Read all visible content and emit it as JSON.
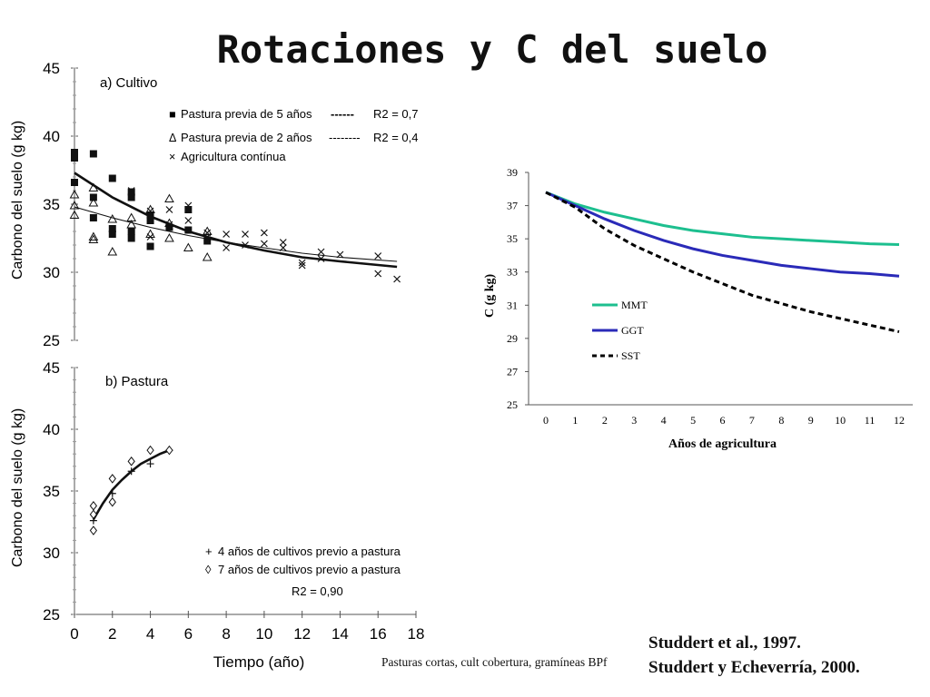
{
  "slide": {
    "title": "Rotaciones y C del suelo",
    "references": [
      "Studdert et al., 1997.",
      "Studdert y Echeverría, 2000."
    ],
    "note": "Pasturas cortas, cult cobertura, gramíneas BPf"
  },
  "chart_data": [
    {
      "type": "scatter",
      "panel_label": "a) Cultivo",
      "ylabel": "Carbono del suelo (g kg-1)",
      "xlabel": "",
      "xlim": [
        0,
        18
      ],
      "ylim": [
        25,
        45
      ],
      "yticks": [
        25,
        30,
        35,
        40,
        45
      ],
      "legend": [
        {
          "marker": "■",
          "label": "Pastura previa de 5 años",
          "line": "------",
          "r2": "R2 = 0,7"
        },
        {
          "marker": "Δ",
          "label": "Pastura previa de 2 años",
          "line": "--------",
          "r2": "R2 = 0,4"
        },
        {
          "marker": "×",
          "label": "Agricultura contínua",
          "line": "",
          "r2": ""
        }
      ],
      "series": [
        {
          "name": "Pastura previa de 5 años",
          "marker": "square",
          "points": [
            [
              0,
              38.8
            ],
            [
              0,
              38.4
            ],
            [
              0,
              36.6
            ],
            [
              1,
              38.7
            ],
            [
              1,
              35.5
            ],
            [
              1,
              34.0
            ],
            [
              2,
              36.9
            ],
            [
              2,
              33.2
            ],
            [
              2,
              32.8
            ],
            [
              3,
              35.9
            ],
            [
              3,
              35.5
            ],
            [
              3,
              33.0
            ],
            [
              3,
              32.5
            ],
            [
              4,
              34.2
            ],
            [
              4,
              33.8
            ],
            [
              4,
              31.9
            ],
            [
              5,
              33.3
            ],
            [
              6,
              34.6
            ],
            [
              6,
              33.1
            ],
            [
              7,
              32.3
            ]
          ]
        },
        {
          "name": "Pastura previa de 2 años",
          "marker": "triangle",
          "points": [
            [
              0,
              35.7
            ],
            [
              0,
              34.9
            ],
            [
              0,
              34.2
            ],
            [
              1,
              36.2
            ],
            [
              1,
              35.1
            ],
            [
              1,
              32.6
            ],
            [
              1,
              32.4
            ],
            [
              2,
              33.9
            ],
            [
              2,
              31.5
            ],
            [
              3,
              34.0
            ],
            [
              3,
              33.5
            ],
            [
              4,
              34.6
            ],
            [
              4,
              32.8
            ],
            [
              5,
              35.4
            ],
            [
              5,
              33.6
            ],
            [
              5,
              32.5
            ],
            [
              6,
              31.8
            ],
            [
              7,
              31.1
            ],
            [
              7,
              33.0
            ]
          ]
        },
        {
          "name": "Agricultura contínua",
          "marker": "cross",
          "points": [
            [
              3,
              36.0
            ],
            [
              4,
              34.5
            ],
            [
              4,
              32.6
            ],
            [
              5,
              34.6
            ],
            [
              5,
              33.5
            ],
            [
              6,
              34.9
            ],
            [
              6,
              34.6
            ],
            [
              6,
              33.8
            ],
            [
              7,
              32.9
            ],
            [
              7,
              32.6
            ],
            [
              8,
              32.8
            ],
            [
              8,
              31.8
            ],
            [
              9,
              32.8
            ],
            [
              9,
              32.0
            ],
            [
              10,
              32.9
            ],
            [
              10,
              32.1
            ],
            [
              11,
              32.2
            ],
            [
              11,
              31.8
            ],
            [
              12,
              30.7
            ],
            [
              12,
              30.5
            ],
            [
              13,
              31.5
            ],
            [
              13,
              31.0
            ],
            [
              14,
              31.3
            ],
            [
              16,
              31.2
            ],
            [
              16,
              29.9
            ],
            [
              17,
              29.5
            ]
          ]
        }
      ],
      "fits": [
        {
          "style": "thick",
          "points": [
            [
              0,
              37.3
            ],
            [
              2,
              35.5
            ],
            [
              4,
              34.1
            ],
            [
              6,
              33.0
            ],
            [
              8,
              32.2
            ],
            [
              10,
              31.6
            ],
            [
              12,
              31.1
            ],
            [
              14,
              30.8
            ],
            [
              17,
              30.4
            ]
          ]
        },
        {
          "style": "thin",
          "points": [
            [
              0,
              34.8
            ],
            [
              2,
              34.0
            ],
            [
              4,
              33.3
            ],
            [
              6,
              32.7
            ],
            [
              8,
              32.2
            ],
            [
              10,
              31.8
            ],
            [
              12,
              31.4
            ],
            [
              14,
              31.1
            ],
            [
              17,
              30.8
            ]
          ]
        }
      ]
    },
    {
      "type": "scatter",
      "panel_label": "b) Pastura",
      "ylabel": "Carbono del suelo (g kg-1)",
      "xlabel": "Tiempo (año)",
      "xlim": [
        0,
        18
      ],
      "ylim": [
        25,
        45
      ],
      "xticks": [
        0,
        2,
        4,
        6,
        8,
        10,
        12,
        14,
        16,
        18
      ],
      "yticks": [
        25,
        30,
        35,
        40,
        45
      ],
      "legend": [
        {
          "marker": "+",
          "label": "4 años de cultivos previo a pastura"
        },
        {
          "marker": "◊",
          "label": "7 años de cultivos previo a pastura"
        }
      ],
      "r2": "R2 = 0,90",
      "series": [
        {
          "name": "4 años de cultivos previo a pastura",
          "marker": "plus",
          "points": [
            [
              1,
              32.6
            ],
            [
              2,
              34.8
            ],
            [
              3,
              36.6
            ],
            [
              4,
              37.2
            ],
            [
              5,
              38.3
            ]
          ]
        },
        {
          "name": "7 años de cultivos previo a pastura",
          "marker": "diamond",
          "points": [
            [
              1,
              33.8
            ],
            [
              1,
              33.1
            ],
            [
              1,
              31.8
            ],
            [
              2,
              36.0
            ],
            [
              2,
              34.1
            ],
            [
              3,
              37.4
            ],
            [
              4,
              38.3
            ],
            [
              5,
              38.3
            ]
          ]
        }
      ],
      "fits": [
        {
          "style": "thick",
          "points": [
            [
              1,
              32.7
            ],
            [
              1.5,
              34.0
            ],
            [
              2,
              35.1
            ],
            [
              2.5,
              35.9
            ],
            [
              3,
              36.6
            ],
            [
              3.5,
              37.2
            ],
            [
              4,
              37.6
            ],
            [
              4.5,
              38.0
            ],
            [
              5,
              38.3
            ]
          ]
        }
      ]
    },
    {
      "type": "line",
      "ylabel": "C (g kg-1)",
      "xlabel": "Años de agricultura",
      "xlim": [
        0,
        12
      ],
      "ylim": [
        25,
        39
      ],
      "xticks": [
        0,
        1,
        2,
        3,
        4,
        5,
        6,
        7,
        8,
        9,
        10,
        11,
        12
      ],
      "yticks": [
        25,
        27,
        29,
        31,
        33,
        35,
        37,
        39
      ],
      "series": [
        {
          "name": "MMT",
          "color": "#1dbf8f",
          "dash": "",
          "x": [
            0,
            1,
            2,
            3,
            4,
            5,
            6,
            7,
            8,
            9,
            10,
            11,
            12
          ],
          "y": [
            37.8,
            37.1,
            36.6,
            36.2,
            35.8,
            35.5,
            35.3,
            35.1,
            35.0,
            34.9,
            34.8,
            34.7,
            34.65
          ]
        },
        {
          "name": "GGT",
          "color": "#2a2ab8",
          "dash": "",
          "x": [
            0,
            1,
            2,
            3,
            4,
            5,
            6,
            7,
            8,
            9,
            10,
            11,
            12
          ],
          "y": [
            37.8,
            37.0,
            36.2,
            35.5,
            34.9,
            34.4,
            34.0,
            33.7,
            33.4,
            33.2,
            33.0,
            32.9,
            32.75
          ]
        },
        {
          "name": "SST",
          "color": "#000000",
          "dash": "6,4",
          "x": [
            0,
            1,
            2,
            3,
            4,
            5,
            6,
            7,
            8,
            9,
            10,
            11,
            12
          ],
          "y": [
            37.8,
            36.9,
            35.6,
            34.6,
            33.8,
            33.0,
            32.3,
            31.6,
            31.1,
            30.6,
            30.2,
            29.8,
            29.4
          ]
        }
      ]
    }
  ]
}
